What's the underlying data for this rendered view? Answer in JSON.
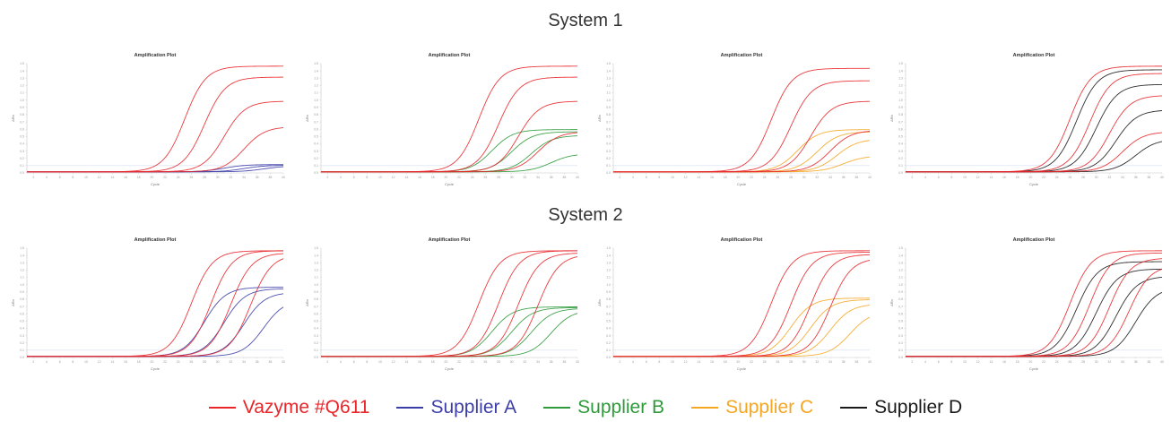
{
  "system1_title": "System 1",
  "system2_title": "System 2",
  "legend": [
    {
      "label": "Vazyme #Q611",
      "color": "#e8262a"
    },
    {
      "label": "Supplier A",
      "color": "#3c3ea8"
    },
    {
      "label": "Supplier B",
      "color": "#2e9a3b"
    },
    {
      "label": "Supplier C",
      "color": "#f5a623"
    },
    {
      "label": "Supplier D",
      "color": "#1a1a1a"
    }
  ],
  "chart_data": [
    {
      "type": "line",
      "system": "System 1",
      "title": "Amplification Plot",
      "xlabel": "Cycle",
      "ylabel": "ΔRn",
      "ylim": [
        0,
        1.5
      ],
      "x": [
        1,
        40
      ],
      "series": [
        {
          "name": "Vazyme #Q611",
          "curves": [
            {
              "ct": 22,
              "max": 1.45
            },
            {
              "ct": 25,
              "max": 1.3
            },
            {
              "ct": 28,
              "max": 0.97
            },
            {
              "ct": 31,
              "max": 0.62
            }
          ]
        },
        {
          "name": "Supplier A",
          "curves": [
            {
              "ct": 28,
              "max": 0.1
            },
            {
              "ct": 31,
              "max": 0.09
            },
            {
              "ct": 34,
              "max": 0.08
            }
          ]
        }
      ]
    },
    {
      "type": "line",
      "system": "System 1",
      "title": "Amplification Plot",
      "xlabel": "Cycle",
      "ylabel": "ΔRn",
      "ylim": [
        0,
        1.5
      ],
      "x": [
        1,
        40
      ],
      "series": [
        {
          "name": "Vazyme #Q611",
          "curves": [
            {
              "ct": 22,
              "max": 1.45
            },
            {
              "ct": 25,
              "max": 1.3
            },
            {
              "ct": 28,
              "max": 0.97
            },
            {
              "ct": 31,
              "max": 0.55
            }
          ]
        },
        {
          "name": "Supplier B",
          "curves": [
            {
              "ct": 24,
              "max": 0.58
            },
            {
              "ct": 27,
              "max": 0.55
            },
            {
              "ct": 30,
              "max": 0.5
            },
            {
              "ct": 33,
              "max": 0.25
            }
          ]
        }
      ]
    },
    {
      "type": "line",
      "system": "System 1",
      "title": "Amplification Plot",
      "xlabel": "Cycle",
      "ylabel": "ΔRn",
      "ylim": [
        0,
        1.5
      ],
      "x": [
        1,
        40
      ],
      "series": [
        {
          "name": "Vazyme #Q611",
          "curves": [
            {
              "ct": 22,
              "max": 1.42
            },
            {
              "ct": 25,
              "max": 1.25
            },
            {
              "ct": 28,
              "max": 0.97
            },
            {
              "ct": 31,
              "max": 0.57
            }
          ]
        },
        {
          "name": "Supplier C",
          "curves": [
            {
              "ct": 26,
              "max": 0.58
            },
            {
              "ct": 29,
              "max": 0.55
            },
            {
              "ct": 32,
              "max": 0.45
            },
            {
              "ct": 33,
              "max": 0.22
            }
          ]
        }
      ]
    },
    {
      "type": "line",
      "system": "System 1",
      "title": "Amplification Plot",
      "xlabel": "Cycle",
      "ylabel": "ΔRn",
      "ylim": [
        0,
        1.5
      ],
      "x": [
        1,
        40
      ],
      "series": [
        {
          "name": "Vazyme #Q611",
          "curves": [
            {
              "ct": 23,
              "max": 1.45
            },
            {
              "ct": 26,
              "max": 1.35
            },
            {
              "ct": 29,
              "max": 1.05
            },
            {
              "ct": 31,
              "max": 0.55
            }
          ]
        },
        {
          "name": "Supplier D",
          "curves": [
            {
              "ct": 24,
              "max": 1.4
            },
            {
              "ct": 27,
              "max": 1.2
            },
            {
              "ct": 30,
              "max": 0.85
            },
            {
              "ct": 33,
              "max": 0.45
            }
          ]
        }
      ]
    },
    {
      "type": "line",
      "system": "System 2",
      "title": "Amplification Plot",
      "xlabel": "Cycle",
      "ylabel": "ΔRn",
      "ylim": [
        0,
        1.5
      ],
      "x": [
        1,
        40
      ],
      "series": [
        {
          "name": "Vazyme #Q611",
          "curves": [
            {
              "ct": 23,
              "max": 1.45
            },
            {
              "ct": 26,
              "max": 1.45
            },
            {
              "ct": 29,
              "max": 1.42
            },
            {
              "ct": 32,
              "max": 1.4
            }
          ]
        },
        {
          "name": "Supplier A",
          "curves": [
            {
              "ct": 25,
              "max": 0.95
            },
            {
              "ct": 28,
              "max": 0.93
            },
            {
              "ct": 31,
              "max": 0.88
            },
            {
              "ct": 34,
              "max": 0.78
            }
          ]
        }
      ]
    },
    {
      "type": "line",
      "system": "System 2",
      "title": "Amplification Plot",
      "xlabel": "Cycle",
      "ylabel": "ΔRn",
      "ylim": [
        0,
        1.5
      ],
      "x": [
        1,
        40
      ],
      "series": [
        {
          "name": "Vazyme #Q611",
          "curves": [
            {
              "ct": 22,
              "max": 1.45
            },
            {
              "ct": 25,
              "max": 1.45
            },
            {
              "ct": 28,
              "max": 1.42
            },
            {
              "ct": 31,
              "max": 1.4
            }
          ]
        },
        {
          "name": "Supplier B",
          "curves": [
            {
              "ct": 24,
              "max": 0.68
            },
            {
              "ct": 27,
              "max": 0.67
            },
            {
              "ct": 30,
              "max": 0.66
            },
            {
              "ct": 33,
              "max": 0.64
            }
          ]
        }
      ]
    },
    {
      "type": "line",
      "system": "System 2",
      "title": "Amplification Plot",
      "xlabel": "Cycle",
      "ylabel": "ΔRn",
      "ylim": [
        0,
        1.5
      ],
      "x": [
        1,
        40
      ],
      "series": [
        {
          "name": "Vazyme #Q611",
          "curves": [
            {
              "ct": 22,
              "max": 1.45
            },
            {
              "ct": 25,
              "max": 1.43
            },
            {
              "ct": 28,
              "max": 1.4
            },
            {
              "ct": 31,
              "max": 1.35
            }
          ]
        },
        {
          "name": "Supplier C",
          "curves": [
            {
              "ct": 25,
              "max": 0.8
            },
            {
              "ct": 28,
              "max": 0.78
            },
            {
              "ct": 31,
              "max": 0.72
            },
            {
              "ct": 34,
              "max": 0.62
            }
          ]
        }
      ]
    },
    {
      "type": "line",
      "system": "System 2",
      "title": "Amplification Plot",
      "xlabel": "Cycle",
      "ylabel": "ΔRn",
      "ylim": [
        0,
        1.5
      ],
      "x": [
        1,
        40
      ],
      "series": [
        {
          "name": "Vazyme #Q611",
          "curves": [
            {
              "ct": 23,
              "max": 1.45
            },
            {
              "ct": 26,
              "max": 1.42
            },
            {
              "ct": 29,
              "max": 1.35
            },
            {
              "ct": 32,
              "max": 1.25
            }
          ]
        },
        {
          "name": "Supplier D",
          "curves": [
            {
              "ct": 24,
              "max": 1.3
            },
            {
              "ct": 27,
              "max": 1.2
            },
            {
              "ct": 30,
              "max": 1.1
            },
            {
              "ct": 33,
              "max": 0.95
            }
          ]
        }
      ]
    }
  ]
}
